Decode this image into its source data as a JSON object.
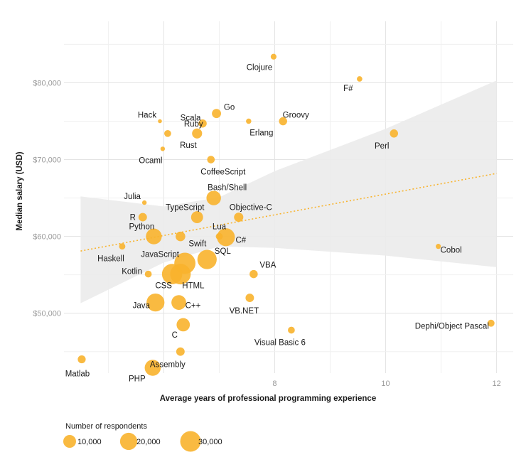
{
  "chart_data": {
    "type": "scatter",
    "title": "",
    "xlabel": "Average years of professional programming experience",
    "ylabel": "Median salary (USD)",
    "xlim": [
      4.2,
      12.3
    ],
    "ylim": [
      42200,
      88000
    ],
    "x_ticks": [
      {
        "value": 8,
        "label": "8"
      },
      {
        "value": 10,
        "label": "10"
      },
      {
        "value": 12,
        "label": "12"
      }
    ],
    "x_ticks_unlabeled": [
      6
    ],
    "y_ticks": [
      {
        "value": 50000,
        "label": "$50,000"
      },
      {
        "value": 60000,
        "label": "$60,000"
      },
      {
        "value": 70000,
        "label": "$70,000"
      },
      {
        "value": 80000,
        "label": "$80,000"
      }
    ],
    "grid": true,
    "point_color": "#f8b32c",
    "band_color": "#ebebeb",
    "trend_color": "#f8b32c",
    "trend_line": {
      "x": [
        4.5,
        12
      ],
      "y": [
        58100,
        68200
      ]
    },
    "confidence_band": [
      {
        "x": 4.5,
        "lower": 51300,
        "upper": 65200
      },
      {
        "x": 6.0,
        "lower": 56600,
        "upper": 63900
      },
      {
        "x": 7.0,
        "lower": 58700,
        "upper": 65100
      },
      {
        "x": 8.0,
        "lower": 58500,
        "upper": 68500
      },
      {
        "x": 10.0,
        "lower": 57500,
        "upper": 74000
      },
      {
        "x": 12.0,
        "lower": 56000,
        "upper": 80300
      }
    ],
    "points": [
      {
        "name": "Clojure",
        "x": 7.98,
        "y": 83400,
        "n": 1200
      },
      {
        "name": "F#",
        "x": 9.53,
        "y": 80500,
        "n": 1000
      },
      {
        "name": "Hack",
        "x": 5.93,
        "y": 75000,
        "n": 300
      },
      {
        "name": "Scala",
        "x": 6.7,
        "y": 74700,
        "n": 3200
      },
      {
        "name": "Go",
        "x": 6.95,
        "y": 76000,
        "n": 4300
      },
      {
        "name": "Erlang",
        "x": 7.53,
        "y": 75000,
        "n": 900
      },
      {
        "name": "Groovy",
        "x": 8.15,
        "y": 75000,
        "n": 3200
      },
      {
        "name": "Rust",
        "x": 6.07,
        "y": 73400,
        "n": 2000
      },
      {
        "name": "Ruby",
        "x": 6.6,
        "y": 73400,
        "n": 5500
      },
      {
        "name": "Perl",
        "x": 10.15,
        "y": 73400,
        "n": 3200
      },
      {
        "name": "Ocaml",
        "x": 5.98,
        "y": 71400,
        "n": 500
      },
      {
        "name": "CoffeeScript",
        "x": 6.85,
        "y": 70000,
        "n": 2600
      },
      {
        "name": "Bash/Shell",
        "x": 6.9,
        "y": 65000,
        "n": 13500
      },
      {
        "name": "Julia",
        "x": 5.65,
        "y": 64400,
        "n": 500
      },
      {
        "name": "R",
        "x": 5.62,
        "y": 62500,
        "n": 3500
      },
      {
        "name": "TypeScript",
        "x": 6.6,
        "y": 62500,
        "n": 8500
      },
      {
        "name": "Objective-C",
        "x": 7.35,
        "y": 62500,
        "n": 4500
      },
      {
        "name": "Python",
        "x": 5.82,
        "y": 60000,
        "n": 16500
      },
      {
        "name": "Swift",
        "x": 6.3,
        "y": 60000,
        "n": 5000
      },
      {
        "name": "Lua",
        "x": 7.0,
        "y": 60000,
        "n": 2000
      },
      {
        "name": "C#",
        "x": 7.12,
        "y": 59900,
        "n": 22000
      },
      {
        "name": "Haskell",
        "x": 5.25,
        "y": 58700,
        "n": 1500
      },
      {
        "name": "Cobol",
        "x": 10.95,
        "y": 58700,
        "n": 800
      },
      {
        "name": "JavaScript",
        "x": 6.38,
        "y": 56500,
        "n": 32000
      },
      {
        "name": "SQL",
        "x": 6.78,
        "y": 57000,
        "n": 26000
      },
      {
        "name": "Kotlin",
        "x": 5.72,
        "y": 55100,
        "n": 2000
      },
      {
        "name": "CSS",
        "x": 6.15,
        "y": 55100,
        "n": 29000
      },
      {
        "name": "HTML",
        "x": 6.3,
        "y": 55100,
        "n": 30000
      },
      {
        "name": "VBA",
        "x": 7.62,
        "y": 55100,
        "n": 3200
      },
      {
        "name": "Java",
        "x": 5.85,
        "y": 51400,
        "n": 22000
      },
      {
        "name": "C++",
        "x": 6.27,
        "y": 51400,
        "n": 14000
      },
      {
        "name": "VB.NET",
        "x": 7.55,
        "y": 52000,
        "n": 3500
      },
      {
        "name": "C",
        "x": 6.35,
        "y": 48500,
        "n": 11000
      },
      {
        "name": "Dephi/Object Pascal",
        "x": 11.9,
        "y": 48700,
        "n": 2100
      },
      {
        "name": "Visual Basic 6",
        "x": 8.3,
        "y": 47800,
        "n": 2000
      },
      {
        "name": "Matlab",
        "x": 4.52,
        "y": 44000,
        "n": 3000
      },
      {
        "name": "Assembly",
        "x": 6.3,
        "y": 45000,
        "n": 3500
      },
      {
        "name": "PHP",
        "x": 5.8,
        "y": 42900,
        "n": 17000
      }
    ],
    "legend": {
      "title": "Number of respondents",
      "placement": "bottom-left",
      "entries": [
        {
          "label": "10,000",
          "n": 10000
        },
        {
          "label": "20,000",
          "n": 20000
        },
        {
          "label": "30,000",
          "n": 30000
        }
      ]
    }
  }
}
